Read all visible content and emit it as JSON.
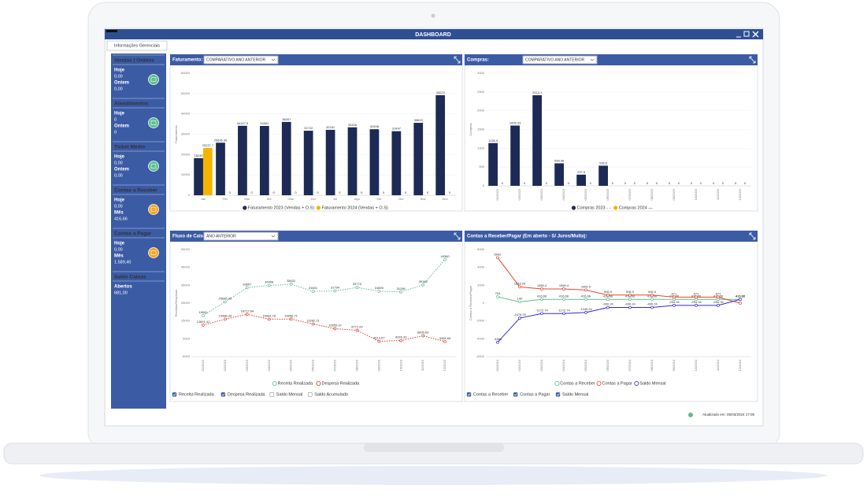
{
  "window": {
    "title": "DASHBOARD",
    "tab": "Informações Gerenciais",
    "updated": "Atualizado em: 05/03/2024 17:05"
  },
  "sidebar": [
    {
      "title": "Vendas | Ordens",
      "icon_color": "#5cbf8f",
      "items": [
        {
          "label": "Hoje",
          "value": "0,00"
        },
        {
          "label": "Ontem",
          "value": "0,00"
        }
      ]
    },
    {
      "title": "Atendimentos",
      "icon_color": "#5cbf8f",
      "items": [
        {
          "label": "Hoje",
          "value": "0"
        },
        {
          "label": "Ontem",
          "value": "0"
        }
      ]
    },
    {
      "title": "Ticket Médio",
      "icon_color": "#5cbf8f",
      "items": [
        {
          "label": "Hoje",
          "value": "0,00"
        },
        {
          "label": "Ontem",
          "value": "0,00"
        }
      ]
    },
    {
      "title": "Contas a Receber",
      "icon_color": "#f5a623",
      "items": [
        {
          "label": "Hoje",
          "value": "0,00"
        },
        {
          "label": "Mês",
          "value": "416,66"
        }
      ]
    },
    {
      "title": "Contas a Pagar",
      "icon_color": "#f5a623",
      "items": [
        {
          "label": "Hoje",
          "value": "0,00"
        },
        {
          "label": "Mês",
          "value": "1.589,40"
        }
      ]
    },
    {
      "title": "Saldo Caixas",
      "items": [
        {
          "label": "Abertos",
          "value": "681,00"
        }
      ]
    }
  ],
  "chart_data": [
    {
      "type": "bar",
      "title": "Faturamento:",
      "dropdown": "COMPARATIVO ANO ANTERIOR",
      "y_label": "Faturamento",
      "categories": [
        "Jan",
        "Fev",
        "Mar",
        "Abr",
        "Mai",
        "Jun",
        "Jul",
        "Ago",
        "Set",
        "Out",
        "Nov",
        "Dez"
      ],
      "series": [
        {
          "name": "Faturamento 2023 (Vendas + O.S)",
          "color": "#1c2a55",
          "values": [
            18245,
            25835.95,
            34147.9,
            34061,
            36057,
            31722,
            32161,
            33406,
            32458,
            31497,
            35603,
            49223
          ]
        },
        {
          "name": "Faturamento 2024 (Vendas + O.S)",
          "color": "#f5b400",
          "values": [
            23237.7,
            0,
            0,
            0,
            0,
            0,
            0,
            0,
            0,
            0,
            0,
            0
          ]
        }
      ],
      "ylim": [
        0,
        60000
      ],
      "yticks": [
        0,
        10000,
        20000,
        30000,
        40000,
        50000,
        60000
      ],
      "grid": true,
      "x_labels_rotated": false
    },
    {
      "type": "bar",
      "title": "Compras:",
      "dropdown": "COMPARATIVO ANO ANTERIOR",
      "y_label": "Compras",
      "categories": [
        "01/2023",
        "02/2023",
        "03/2023",
        "04/2023",
        "05/2023",
        "06/2023",
        "07/2023",
        "08/2023",
        "09/2023",
        "10/2023",
        "11/2023",
        "12/2023"
      ],
      "series": [
        {
          "name": "Compras 2023 - -",
          "color": "#1c2a55",
          "values": [
            1138.9,
            1605.33,
            2413.1,
            598.98,
            297.5,
            536.6,
            0,
            0,
            0,
            0,
            0,
            0
          ]
        },
        {
          "name": "Compras 2024 —",
          "color": "#f5b400",
          "values": [
            0,
            0,
            0,
            0,
            0,
            0,
            0,
            0,
            0,
            0,
            0,
            0
          ]
        }
      ],
      "ylim": [
        0,
        3000
      ],
      "yticks": [
        0,
        500,
        1000,
        1500,
        2000,
        2500,
        3000
      ],
      "grid": true,
      "x_labels_rotated": true
    },
    {
      "type": "line",
      "title": "Fluxo de Caixa:",
      "dropdown": "ANO ANTERIOR",
      "y_label": "Receitas/Despesas",
      "line_style": "dotted",
      "categories": [
        "01/2023",
        "02/2023",
        "03/2023",
        "04/2023",
        "05/2023",
        "06/2023",
        "07/2023",
        "08/2023",
        "09/2023",
        "10/2023",
        "11/2023",
        "12/2023"
      ],
      "series": [
        {
          "name": "Receita Realizada",
          "color": "#5cbf8f",
          "values": [
            18061,
            25685.95,
            33657,
            34908,
            35631,
            31601,
            31794,
            33773,
            31655,
            31286,
            35189,
            49380
          ]
        },
        {
          "name": "Despesa Realizada",
          "color": "#d93a26",
          "values": [
            12691.41,
            15988.34,
            18717.84,
            15993.76,
            16056.71,
            13282.21,
            10655.97,
            9771.93,
            3613.67,
            4026.33,
            6695.69,
            3465.69
          ]
        }
      ],
      "ylim": [
        -5000,
        55000
      ],
      "yticks": [
        -5000,
        5000,
        15000,
        25000,
        35000,
        45000,
        55000
      ],
      "grid": false,
      "x_labels_rotated": true,
      "checkboxes": [
        {
          "label": "Receita Realizada",
          "checked": true
        },
        {
          "label": "Despesa Realizada",
          "checked": true
        },
        {
          "label": "Saldo Mensal",
          "checked": false
        },
        {
          "label": "Saldo Acumulado",
          "checked": false
        }
      ]
    },
    {
      "type": "line",
      "title": "Contas a Receber/Pagar (Em aberto - S/ Juros/Multa):",
      "y_label": "Contas a Receber/Pagar",
      "line_style": "solid",
      "categories": [
        "01/2024",
        "02/2024",
        "03/2024",
        "04/2024",
        "05/2024",
        "06/2024",
        "07/2024",
        "08/2024",
        "09/2024",
        "10/2024",
        "11/2024",
        "12/2024"
      ],
      "series": [
        {
          "name": "Contas a Receber",
          "color": "#5cbf8f",
          "values": [
            704,
            140,
            416.66,
            416.66,
            416.66,
            416.66,
            416.66,
            416.66,
            416.66,
            416.66,
            416.66,
            416.66
          ]
        },
        {
          "name": "Contas a Pagar",
          "color": "#e8452c",
          "values": [
            5092,
            1818.29,
            1589.4,
            1589.4,
            1461.9,
            906.9,
            906.9,
            906.9,
            671,
            671,
            671,
            0
          ]
        },
        {
          "name": "Saldo Mensal",
          "color": "#2b2bd8",
          "values": [
            -4388,
            -1678.29,
            -1172.74,
            -1172.74,
            -1045.24,
            -490.24,
            -490.24,
            -490.24,
            -254.34,
            -254.34,
            -254.34,
            416.66
          ]
        }
      ],
      "ylim": [
        -6000,
        6000
      ],
      "yticks": [
        -6000,
        -4000,
        -2000,
        0,
        2000,
        4000,
        6000
      ],
      "grid": false,
      "x_labels_rotated": true,
      "checkboxes": [
        {
          "label": "Contas a Receber",
          "checked": true
        },
        {
          "label": "Contas a Pagar",
          "checked": true
        },
        {
          "label": "Saldo Mensal",
          "checked": true
        }
      ]
    }
  ]
}
